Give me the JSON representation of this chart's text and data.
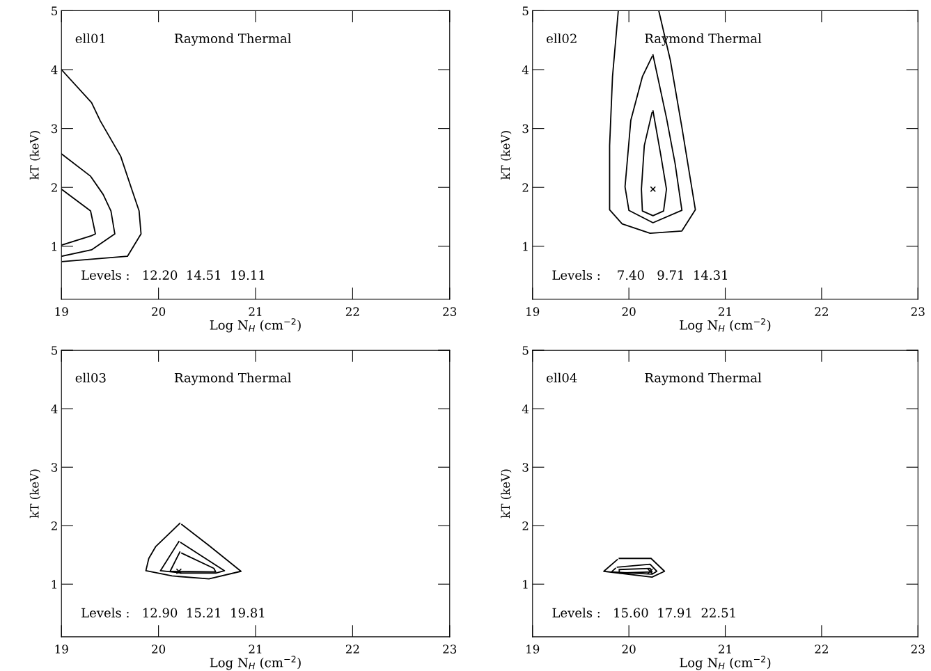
{
  "chart_data": [
    {
      "type": "line",
      "xlabel": "Log N$_{H}$ (cm$^{−2}$)",
      "ylabel": "kT (keV)",
      "xlim": [
        19,
        23
      ],
      "ylim": [
        0.1,
        5
      ],
      "xticks": [
        19,
        20,
        21,
        22,
        23
      ],
      "yticks": [
        1,
        2,
        3,
        4,
        5
      ],
      "grid": false,
      "legend": false,
      "marker": "none",
      "line_style": "solid",
      "annotations": [
        "ell01",
        "Raymond Thermal",
        "Levels :   12.20  14.51  19.11"
      ],
      "series": [
        {
          "type": "line",
          "color": "#000000",
          "x": [
            19.0,
            19.31,
            19.4,
            19.61,
            19.73,
            19.8,
            19.82,
            19.68,
            19.01
          ],
          "values": [
            4.0,
            3.44,
            3.13,
            2.53,
            1.94,
            1.6,
            1.21,
            0.83,
            0.74
          ]
        },
        {
          "type": "line",
          "color": "#000000",
          "x": [
            19.0,
            19.3,
            19.43,
            19.51,
            19.55,
            19.31,
            19.0
          ],
          "values": [
            2.57,
            2.19,
            1.88,
            1.6,
            1.21,
            0.94,
            0.83
          ]
        },
        {
          "type": "line",
          "color": "#000000",
          "x": [
            19.0,
            19.3,
            19.35,
            19.31,
            19.0
          ],
          "values": [
            1.97,
            1.6,
            1.21,
            1.18,
            1.02
          ]
        }
      ]
    },
    {
      "type": "line",
      "xlabel": "Log N$_{H}$ (cm$^{−2}$)",
      "ylabel": "kT (keV)",
      "xlim": [
        19,
        23
      ],
      "ylim": [
        0.1,
        5
      ],
      "xticks": [
        19,
        20,
        21,
        22,
        23
      ],
      "yticks": [
        1,
        2,
        3,
        4,
        5
      ],
      "grid": false,
      "legend": false,
      "marker": "none",
      "line_style": "solid",
      "annotations": [
        "ell02",
        "Raymond Thermal",
        "Levels :    7.40   9.71  14.31"
      ],
      "series": [
        {
          "type": "line",
          "color": "#000000",
          "x": [
            19.89,
            19.83,
            19.8,
            19.8,
            19.93,
            20.22,
            20.55,
            20.69,
            20.55,
            20.43,
            20.31
          ],
          "values": [
            5.0,
            3.88,
            2.71,
            1.62,
            1.38,
            1.22,
            1.26,
            1.62,
            3.02,
            4.16,
            5.0
          ]
        },
        {
          "type": "line",
          "color": "#000000",
          "x": [
            20.25,
            20.39,
            20.48,
            20.55,
            20.25,
            20.0,
            19.96,
            20.02,
            20.14,
            20.24
          ],
          "values": [
            4.25,
            3.18,
            2.4,
            1.61,
            1.4,
            1.61,
            2.01,
            3.14,
            3.88,
            4.22
          ]
        },
        {
          "type": "line",
          "color": "#000000",
          "x": [
            20.25,
            20.33,
            20.39,
            20.36,
            20.25,
            20.14,
            20.13,
            20.16,
            20.24
          ],
          "values": [
            3.3,
            2.56,
            1.97,
            1.6,
            1.52,
            1.6,
            1.97,
            2.71,
            3.27
          ]
        },
        {
          "type": "scatter",
          "marker": "cross",
          "color": "#000000",
          "x": [
            20.25
          ],
          "values": [
            1.97
          ]
        }
      ]
    },
    {
      "type": "line",
      "xlabel": "Log N$_{H}$ (cm$^{−2}$)",
      "ylabel": "kT (keV)",
      "xlim": [
        19,
        23
      ],
      "ylim": [
        0.1,
        5
      ],
      "xticks": [
        19,
        20,
        21,
        22,
        23
      ],
      "yticks": [
        1,
        2,
        3,
        4,
        5
      ],
      "grid": false,
      "legend": false,
      "marker": "none",
      "line_style": "solid",
      "annotations": [
        "ell03",
        "Raymond Thermal",
        "Levels :   12.90  15.21  19.81"
      ],
      "series": [
        {
          "type": "line",
          "color": "#000000",
          "x": [
            20.22,
            19.97,
            19.9,
            19.87,
            20.14,
            20.52,
            20.85,
            20.52,
            20.24
          ],
          "values": [
            2.04,
            1.64,
            1.44,
            1.23,
            1.14,
            1.09,
            1.22,
            1.66,
            2.02
          ]
        },
        {
          "type": "line",
          "color": "#000000",
          "x": [
            20.21,
            20.02,
            20.24,
            20.59,
            20.68,
            20.23
          ],
          "values": [
            1.73,
            1.23,
            1.19,
            1.19,
            1.23,
            1.71
          ]
        },
        {
          "type": "line",
          "color": "#000000",
          "x": [
            20.22,
            20.12,
            20.59,
            20.57,
            20.24
          ],
          "values": [
            1.55,
            1.22,
            1.21,
            1.27,
            1.53
          ]
        },
        {
          "type": "scatter",
          "marker": "cross",
          "color": "#000000",
          "x": [
            20.21
          ],
          "values": [
            1.22
          ]
        }
      ]
    },
    {
      "type": "line",
      "xlabel": "Log N$_{H}$ (cm$^{−2}$)",
      "ylabel": "kT (keV)",
      "xlim": [
        19,
        23
      ],
      "ylim": [
        0.1,
        5
      ],
      "xticks": [
        19,
        20,
        21,
        22,
        23
      ],
      "yticks": [
        1,
        2,
        3,
        4,
        5
      ],
      "grid": false,
      "legend": false,
      "marker": "none",
      "line_style": "solid",
      "annotations": [
        "ell04",
        "Raymond Thermal",
        "Levels :   15.60  17.91  22.51"
      ],
      "series": [
        {
          "type": "line",
          "color": "#000000",
          "x": [
            19.9,
            20.23,
            20.37,
            20.24,
            19.74,
            19.88
          ],
          "values": [
            1.44,
            1.44,
            1.22,
            1.12,
            1.22,
            1.42
          ]
        },
        {
          "type": "line",
          "color": "#000000",
          "x": [
            19.88,
            20.22,
            20.29,
            20.24,
            19.82,
            19.86
          ],
          "values": [
            1.29,
            1.34,
            1.22,
            1.17,
            1.21,
            1.27
          ]
        },
        {
          "type": "line",
          "color": "#000000",
          "x": [
            19.9,
            20.22,
            20.24,
            19.9,
            19.9
          ],
          "values": [
            1.25,
            1.27,
            1.21,
            1.19,
            1.24
          ]
        },
        {
          "type": "scatter",
          "marker": "cross",
          "color": "#000000",
          "x": [
            20.22
          ],
          "values": [
            1.22
          ]
        }
      ]
    }
  ]
}
